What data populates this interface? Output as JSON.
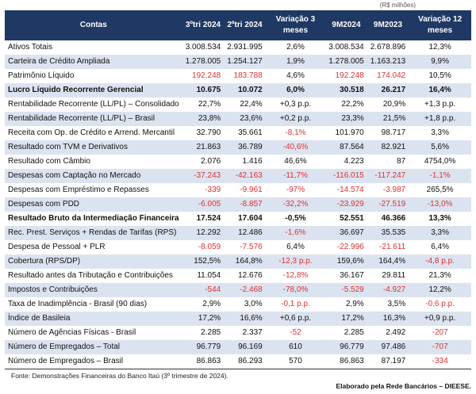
{
  "unit_note": "(R$ milhões)",
  "headers": [
    "Contas",
    "3ºtri 2024",
    "2ºtri 2024",
    "Variação 3 meses",
    "9M2024",
    "9M2023",
    "Variação 12 meses"
  ],
  "colors": {
    "header_bg": "#1f3864",
    "row_shade": "#dce3f0",
    "negative": "#e03030"
  },
  "rows": [
    {
      "label": "Ativos Totais",
      "values": [
        "3.008.534",
        "2.931.995",
        "2,6%",
        "3.008.534",
        "2.678.896",
        "12,3%"
      ],
      "red": []
    },
    {
      "label": "Carteira de Crédito Ampliada",
      "values": [
        "1.278.005",
        "1.254.127",
        "1,9%",
        "1.278.005",
        "1.163.213",
        "9,9%"
      ],
      "red": []
    },
    {
      "label": "Patrimônio Líquido",
      "values": [
        "192.248",
        "183.788",
        "4,6%",
        "192.248",
        "174.042",
        "10,5%"
      ],
      "red": [
        0,
        1,
        3,
        4
      ]
    },
    {
      "label": "Lucro Líquido Recorrente Gerencial",
      "values": [
        "10.675",
        "10.072",
        "6,0%",
        "30.518",
        "26.217",
        "16,4%"
      ],
      "red": [],
      "bold": true
    },
    {
      "label": "Rentabilidade Recorrente (LL/PL) – Consolidado",
      "values": [
        "22,7%",
        "22,4%",
        "+0,3 p.p.",
        "22,2%",
        "20,9%",
        "+1,3 p.p."
      ],
      "red": []
    },
    {
      "label": "Rentabilidade Recorrente (LL/PL) – Brasil",
      "values": [
        "23,8%",
        "23,6%",
        "+0,2 p.p.",
        "23,3%",
        "21,5%",
        "+1,8 p.p."
      ],
      "red": []
    },
    {
      "label": "Receita com Op. de Crédito e Arrend. Mercantil",
      "values": [
        "32.790",
        "35.661",
        "-8,1%",
        "101.970",
        "98.717",
        "3,3%"
      ],
      "red": [
        2
      ]
    },
    {
      "label": "Resultado com TVM e Derivativos",
      "values": [
        "21.863",
        "36.789",
        "-40,6%",
        "87.564",
        "82.921",
        "5,6%"
      ],
      "red": [
        2
      ]
    },
    {
      "label": "Resultado com Câmbio",
      "values": [
        "2.076",
        "1.416",
        "46,6%",
        "4.223",
        "87",
        "4754,0%"
      ],
      "red": []
    },
    {
      "label": "Despesas com Captação no Mercado",
      "values": [
        "-37.243",
        "-42.163",
        "-11,7%",
        "-116.015",
        "-117.247",
        "-1,1%"
      ],
      "red": [
        0,
        1,
        2,
        3,
        4,
        5
      ]
    },
    {
      "label": "Despesas com Empréstimo e Repasses",
      "values": [
        "-339",
        "-9.961",
        "-97%",
        "-14.574",
        "-3.987",
        "265,5%"
      ],
      "red": [
        0,
        1,
        2,
        3,
        4
      ]
    },
    {
      "label": "Despesas com PDD",
      "values": [
        "-6.005",
        "-8.857",
        "-32,2%",
        "-23.929",
        "-27.519",
        "-13,0%"
      ],
      "red": [
        0,
        1,
        2,
        3,
        4,
        5
      ]
    },
    {
      "label": "Resultado Bruto da Intermediação Financeira",
      "values": [
        "17.524",
        "17.604",
        "-0,5%",
        "52.551",
        "46.366",
        "13,3%"
      ],
      "red": [],
      "bold": true
    },
    {
      "label": "Rec. Prest. Serviços + Rendas de Tarifas (RPS)",
      "values": [
        "12.292",
        "12.486",
        "-1,6%",
        "36.697",
        "35.535",
        "3,3%"
      ],
      "red": [
        2
      ]
    },
    {
      "label": "Despesa de Pessoal + PLR",
      "values": [
        "-8.059",
        "-7.576",
        "6,4%",
        "-22.996",
        "-21.611",
        "6,4%"
      ],
      "red": [
        0,
        1,
        3,
        4
      ]
    },
    {
      "label": "Cobertura (RPS/DP)",
      "values": [
        "152,5%",
        "164,8%",
        "-12,3 p.p.",
        "159,6%",
        "164,4%",
        "-4,8 p.p."
      ],
      "red": [
        2,
        5
      ]
    },
    {
      "label": "Resultado antes da Tributação e Contribuições",
      "values": [
        "11.054",
        "12.676",
        "-12,8%",
        "36.167",
        "29.811",
        "21,3%"
      ],
      "red": [
        2
      ]
    },
    {
      "label": "Impostos e Contribuições",
      "values": [
        "-544",
        "-2.468",
        "-78,0%",
        "-5.529",
        "-4.927",
        "12,2%"
      ],
      "red": [
        0,
        1,
        2,
        3,
        4
      ]
    },
    {
      "label": "Taxa de Inadimplência - Brasil (90 dias)",
      "values": [
        "2,9%",
        "3,0%",
        "-0,1 p.p.",
        "2,9%",
        "3,5%",
        "-0,6 p.p."
      ],
      "red": [
        2,
        5
      ]
    },
    {
      "label": "Índice de Basileia",
      "values": [
        "17,2%",
        "16,6%",
        "+0,6 p.p.",
        "17,2%",
        "16,3%",
        "+0,9 p.p."
      ],
      "red": []
    },
    {
      "label": "Número de Agências Físicas - Brasil",
      "values": [
        "2.285",
        "2.337",
        "-52",
        "2.285",
        "2.492",
        "-207"
      ],
      "red": [
        2,
        5
      ]
    },
    {
      "label": "Número de Empregados – Total",
      "values": [
        "96.779",
        "96.169",
        "610",
        "96.779",
        "97.486",
        "-707"
      ],
      "red": [
        5
      ]
    },
    {
      "label": "Número de Empregados – Brasil",
      "values": [
        "86.863",
        "86.293",
        "570",
        "86.863",
        "87.197",
        "-334"
      ],
      "red": [
        5
      ]
    }
  ],
  "source": "Fonte: Demonstrações Financeiras do Banco Itaú (3º trimestre de 2024).",
  "author": "Elaborado pela Rede Bancários – DIEESE."
}
